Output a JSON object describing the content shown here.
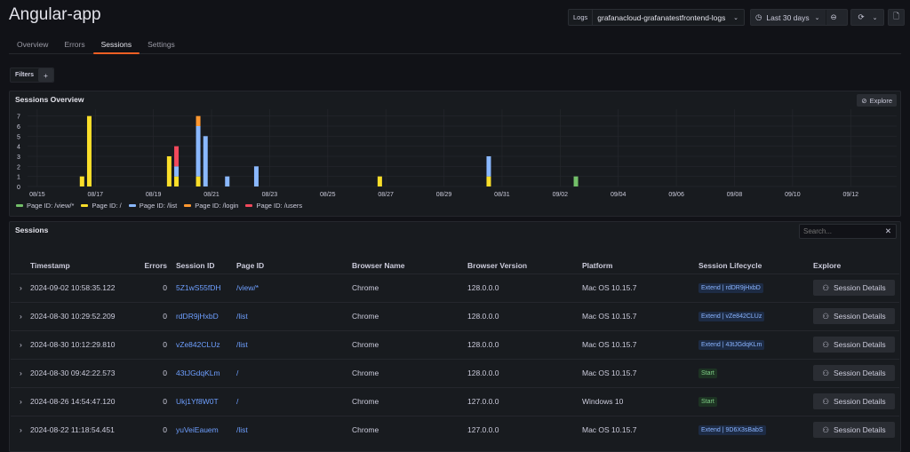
{
  "header": {
    "title": "Angular-app",
    "datasource_label": "Logs",
    "datasource": "grafanacloud-grafanatestfrontend-logs",
    "time_range": "Last 30 days"
  },
  "tabs": [
    {
      "label": "Overview"
    },
    {
      "label": "Errors"
    },
    {
      "label": "Sessions",
      "active": true
    },
    {
      "label": "Settings"
    }
  ],
  "filters": {
    "label": "Filters",
    "add": "+"
  },
  "overview": {
    "title": "Sessions Overview",
    "explore": "Explore"
  },
  "chart_data": {
    "type": "bar",
    "stacked": true,
    "title": "Sessions Overview",
    "xlim": [
      "2024-08-14 16:00",
      "2024-09-13 14:00"
    ],
    "ylim": [
      0,
      7.5
    ],
    "x_ticks": [
      "08/15",
      "08/17",
      "08/19",
      "08/21",
      "08/23",
      "08/25",
      "08/27",
      "08/29",
      "08/31",
      "09/02",
      "09/04",
      "09/06",
      "09/08",
      "09/10",
      "09/12"
    ],
    "y_ticks": [
      0,
      1,
      2,
      3,
      4,
      5,
      6,
      7
    ],
    "grid": true,
    "legend": "bottom-left",
    "x": [
      "2024-08-16 13:00",
      "2024-08-16 19:00",
      "2024-08-19 13:00",
      "2024-08-19 19:00",
      "2024-08-20 13:00",
      "2024-08-20 19:00",
      "2024-08-21 13:00",
      "2024-08-22 13:00",
      "2024-08-26 19:00",
      "2024-08-30 13:00",
      "2024-09-02 13:00"
    ],
    "series": [
      {
        "name": "Page ID: /view/*",
        "color": "#73bf69",
        "values": [
          0,
          0,
          0,
          0,
          0,
          0,
          0,
          0,
          0,
          0,
          1
        ]
      },
      {
        "name": "Page ID: /",
        "color": "#fade2a",
        "values": [
          1,
          7,
          3,
          1,
          1,
          0,
          0,
          0,
          1,
          1,
          0
        ]
      },
      {
        "name": "Page ID: /list",
        "color": "#8ab8ff",
        "values": [
          0,
          0,
          0,
          1,
          5,
          5,
          1,
          2,
          0,
          2,
          0
        ]
      },
      {
        "name": "Page ID: /login",
        "color": "#ff9830",
        "values": [
          0,
          0,
          0,
          0,
          1,
          0,
          0,
          0,
          0,
          0,
          0
        ]
      },
      {
        "name": "Page ID: /users",
        "color": "#f2495c",
        "values": [
          0,
          0,
          0,
          2,
          0,
          0,
          0,
          0,
          0,
          0,
          0
        ]
      }
    ]
  },
  "sessions": {
    "title": "Sessions",
    "search_placeholder": "Search...",
    "columns": [
      "Timestamp",
      "Errors",
      "Session ID",
      "Page ID",
      "Browser Name",
      "Browser Version",
      "Platform",
      "Session Lifecycle",
      "Explore"
    ],
    "button_label": "Session Details",
    "rows": [
      {
        "timestamp": "2024-09-02 10:58:35.122",
        "errors": "0",
        "session_id": "5Z1wS55fDH",
        "page_id": "/view/*",
        "browser": "Chrome",
        "version": "128.0.0.0",
        "platform": "Mac OS 10.15.7",
        "lifecycle": "Extend | rdDR9jHxbD",
        "lifecycle_type": "extend"
      },
      {
        "timestamp": "2024-08-30 10:29:52.209",
        "errors": "0",
        "session_id": "rdDR9jHxbD",
        "page_id": "/list",
        "browser": "Chrome",
        "version": "128.0.0.0",
        "platform": "Mac OS 10.15.7",
        "lifecycle": "Extend | vZe842CLUz",
        "lifecycle_type": "extend"
      },
      {
        "timestamp": "2024-08-30 10:12:29.810",
        "errors": "0",
        "session_id": "vZe842CLUz",
        "page_id": "/list",
        "browser": "Chrome",
        "version": "128.0.0.0",
        "platform": "Mac OS 10.15.7",
        "lifecycle": "Extend | 43tJGdqKLm",
        "lifecycle_type": "extend"
      },
      {
        "timestamp": "2024-08-30 09:42:22.573",
        "errors": "0",
        "session_id": "43tJGdqKLm",
        "page_id": "/",
        "browser": "Chrome",
        "version": "128.0.0.0",
        "platform": "Mac OS 10.15.7",
        "lifecycle": "Start",
        "lifecycle_type": "start"
      },
      {
        "timestamp": "2024-08-26 14:54:47.120",
        "errors": "0",
        "session_id": "Ukj1Yf8W0T",
        "page_id": "/",
        "browser": "Chrome",
        "version": "127.0.0.0",
        "platform": "Windows 10",
        "lifecycle": "Start",
        "lifecycle_type": "start"
      },
      {
        "timestamp": "2024-08-22 11:18:54.451",
        "errors": "0",
        "session_id": "yuVeiEauem",
        "page_id": "/list",
        "browser": "Chrome",
        "version": "127.0.0.0",
        "platform": "Mac OS 10.15.7",
        "lifecycle": "Extend | 9D6X3sBabS",
        "lifecycle_type": "extend"
      }
    ]
  }
}
